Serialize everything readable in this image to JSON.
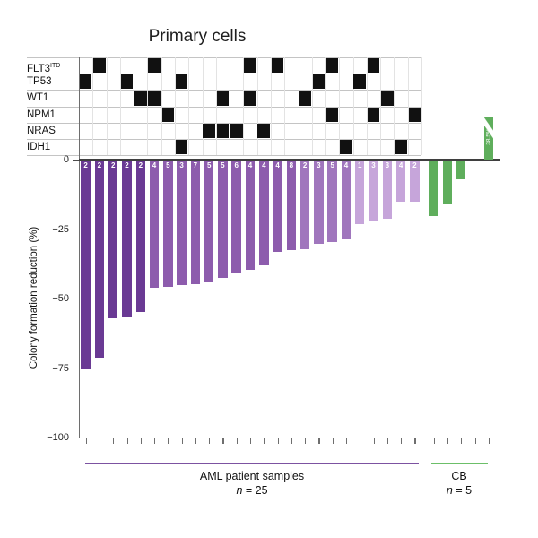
{
  "title": "Primary cells",
  "colors": {
    "bar_dark": "#6a3a94",
    "bar_medium": "#8d5cad",
    "bar_medium_light": "#a076bd",
    "bar_light": "#c6a5da",
    "cb_green": "#5fae5c",
    "mutation_cell_black": "#111111",
    "aml_group_line": "#7c52a1",
    "cb_group_line": "#6cbf69",
    "axis": "#4a4a4a",
    "dashed_grid": "#ababab"
  },
  "mutation_matrix": {
    "n_columns": 25,
    "genes": [
      {
        "label": "FLT3",
        "sup": "ITD",
        "mutated_columns": [
          2,
          6,
          13,
          15,
          19,
          22
        ]
      },
      {
        "label": "TP53",
        "sup": "",
        "mutated_columns": [
          1,
          4,
          8,
          18,
          21
        ]
      },
      {
        "label": "WT1",
        "sup": "",
        "mutated_columns": [
          5,
          6,
          11,
          13,
          17,
          23
        ]
      },
      {
        "label": "NPM1",
        "sup": "",
        "mutated_columns": [
          7,
          19,
          22,
          25
        ]
      },
      {
        "label": "NRAS",
        "sup": "",
        "mutated_columns": [
          10,
          11,
          12,
          14
        ]
      },
      {
        "label": "IDH1",
        "sup": "",
        "mutated_columns": [
          8,
          20,
          24
        ]
      }
    ]
  },
  "chart_data": {
    "type": "bar",
    "title": "Primary cells",
    "xlabel": "",
    "ylabel": "Colony formation reduction (%)",
    "ylim": [
      -100,
      0
    ],
    "y_ticks": [
      0,
      -25,
      -50,
      -75,
      -100
    ],
    "y_tick_labels": [
      "0",
      "−25",
      "−50",
      "−75",
      "−100"
    ],
    "grid": "dashed horizontal lines at -25, -50, -75",
    "legend_position": "below axis group lines",
    "series": [
      {
        "name": "AML patient samples",
        "n": 25,
        "values": [
          -75,
          -71,
          -57,
          -56.5,
          -54.5,
          -46,
          -45.5,
          -45,
          -44.5,
          -44,
          -42.5,
          -40.5,
          -39.5,
          -37.5,
          -33,
          -32.5,
          -32,
          -30,
          -29.5,
          -28.5,
          -23,
          -22,
          -21,
          -15,
          -15
        ],
        "bar_top_labels": [
          "2",
          "2",
          "2",
          "2",
          "2",
          "4",
          "5",
          "3",
          "7",
          "5",
          "5",
          "6",
          "4",
          "4",
          "4",
          "8",
          "2",
          "3",
          "5",
          "4",
          "1",
          "3",
          "3",
          "4",
          "2"
        ],
        "bar_colors": [
          "#6a3a94",
          "#6a3a94",
          "#6a3a94",
          "#6a3a94",
          "#6a3a94",
          "#8d5cad",
          "#8d5cad",
          "#8d5cad",
          "#8d5cad",
          "#8d5cad",
          "#8d5cad",
          "#8d5cad",
          "#8d5cad",
          "#8d5cad",
          "#8d5cad",
          "#8d5cad",
          "#a076bd",
          "#a076bd",
          "#a076bd",
          "#a076bd",
          "#c6a5da",
          "#c6a5da",
          "#c6a5da",
          "#c6a5da",
          "#c6a5da"
        ]
      },
      {
        "name": "CB",
        "n": 5,
        "values": [
          -20,
          -16,
          -7,
          0,
          38.5
        ],
        "color": "#5fae5c",
        "broken_bar": {
          "index": 5,
          "label": "38.5%",
          "direction": "up",
          "note": "drawn above axis with white break stripe"
        }
      }
    ]
  },
  "x_groups": [
    {
      "label": "AML patient samples",
      "n_italic": "n",
      "n_rest": " = 25"
    },
    {
      "label": "CB",
      "n_italic": "n",
      "n_rest": " = 5"
    }
  ]
}
